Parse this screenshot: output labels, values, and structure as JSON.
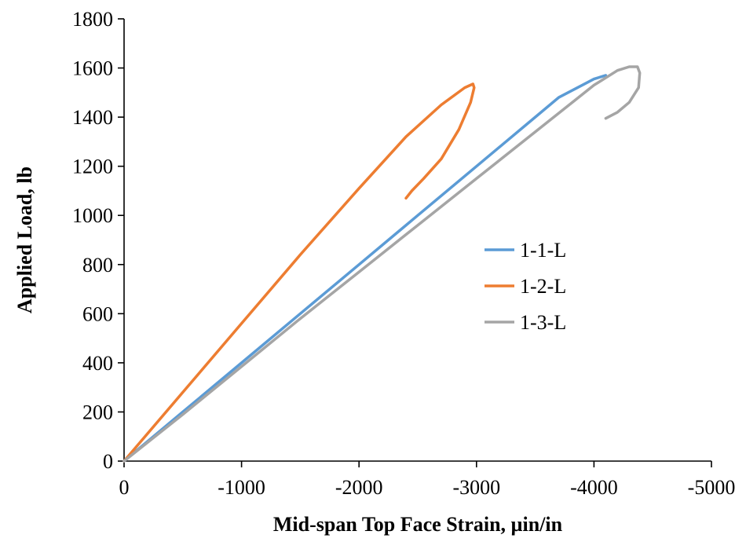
{
  "chart_data": {
    "type": "line",
    "title": "",
    "xlabel": "Mid-span Top Face Strain, µin/in",
    "ylabel": "Applied Load, lb",
    "xlim": [
      0,
      -5000
    ],
    "ylim": [
      0,
      1800
    ],
    "x_ticks": [
      0,
      -1000,
      -2000,
      -3000,
      -4000,
      -5000
    ],
    "y_ticks": [
      0,
      200,
      400,
      600,
      800,
      1000,
      1200,
      1400,
      1600,
      1800
    ],
    "grid": false,
    "legend_position": "center-right",
    "series": [
      {
        "name": "1-1-L",
        "color": "#5B9BD5",
        "x": [
          0,
          -500,
          -1000,
          -1500,
          -2000,
          -2500,
          -3000,
          -3500,
          -3700,
          -3900,
          -4000,
          -4100
        ],
        "y": [
          0,
          200,
          400,
          600,
          800,
          1000,
          1200,
          1400,
          1480,
          1530,
          1555,
          1570
        ]
      },
      {
        "name": "1-2-L",
        "color": "#ED7D31",
        "x": [
          0,
          -500,
          -1000,
          -1500,
          -2000,
          -2400,
          -2700,
          -2900,
          -2970,
          -2980,
          -2950,
          -2850,
          -2700,
          -2550,
          -2450,
          -2400
        ],
        "y": [
          0,
          280,
          560,
          840,
          1110,
          1320,
          1450,
          1520,
          1535,
          1520,
          1460,
          1350,
          1230,
          1150,
          1100,
          1070
        ]
      },
      {
        "name": "1-3-L",
        "color": "#A5A5A5",
        "x": [
          0,
          -500,
          -1000,
          -1500,
          -2000,
          -2500,
          -3000,
          -3500,
          -4000,
          -4200,
          -4300,
          -4370,
          -4390,
          -4380,
          -4300,
          -4200,
          -4100
        ],
        "y": [
          0,
          190,
          385,
          580,
          770,
          960,
          1150,
          1340,
          1530,
          1590,
          1605,
          1605,
          1580,
          1520,
          1460,
          1420,
          1395
        ]
      }
    ]
  }
}
